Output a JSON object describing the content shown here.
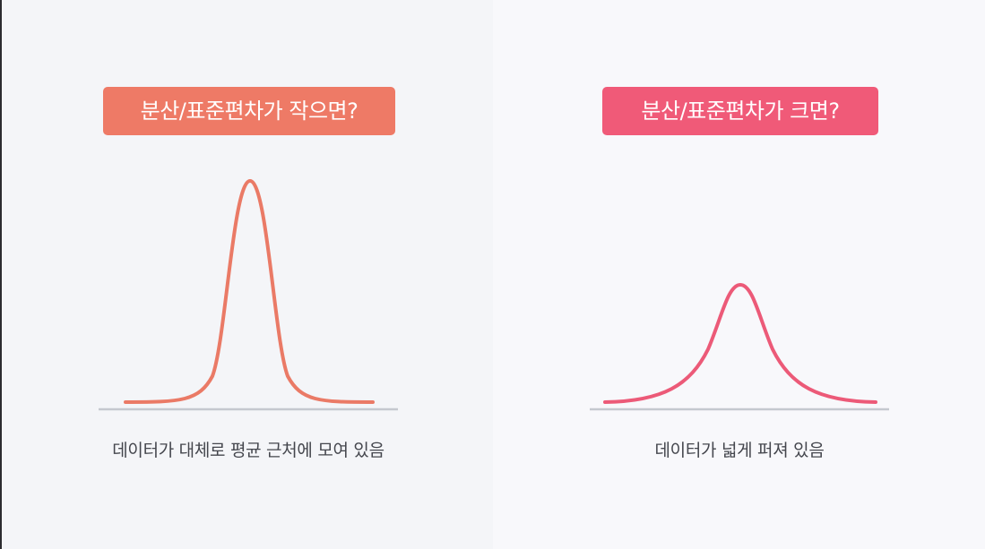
{
  "left": {
    "badge_text": "분산/표준편차가 작으면?",
    "caption": "데이터가 대체로 평균 근처에 모여 있음",
    "curve_color": "#ea7a66",
    "badge_color": "#ee7a66",
    "spread": "small"
  },
  "right": {
    "badge_text": "분산/표준편차가 크면?",
    "caption": "데이터가 넓게 퍼져 있음",
    "curve_color": "#ec5a78",
    "badge_color": "#f05a78",
    "spread": "large"
  },
  "colors": {
    "baseline": "#c5c8cf",
    "text": "#44464d"
  }
}
